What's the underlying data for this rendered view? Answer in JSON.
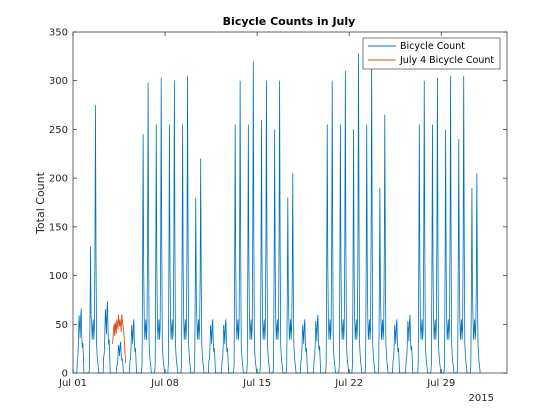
{
  "chart_data": {
    "type": "line",
    "title": "Bicycle Counts in July",
    "xlabel": "",
    "ylabel": "Total Count",
    "x_range": [
      "2015-07-01",
      "2015-08-03"
    ],
    "ylim": [
      0,
      350
    ],
    "yticks": [
      0,
      50,
      100,
      150,
      200,
      250,
      300,
      350
    ],
    "xticks": [
      {
        "date": "2015-07-01",
        "label": "Jul 01"
      },
      {
        "date": "2015-07-08",
        "label": "Jul 08"
      },
      {
        "date": "2015-07-15",
        "label": "Jul 15"
      },
      {
        "date": "2015-07-22",
        "label": "Jul 22"
      },
      {
        "date": "2015-07-29",
        "label": "Jul 29"
      }
    ],
    "x_secondary_label": "2015",
    "grid": false,
    "legend_position": "top-right",
    "series": [
      {
        "name": "Bicycle Count",
        "color": "#0072bd",
        "daily_peaks": [
          {
            "date": "2015-07-01",
            "am": 72,
            "pm": 50
          },
          {
            "date": "2015-07-02",
            "am": 130,
            "pm": 275
          },
          {
            "date": "2015-07-03",
            "am": 80,
            "pm": 60
          },
          {
            "date": "2015-07-04",
            "am": 30,
            "pm": 35
          },
          {
            "date": "2015-07-05",
            "am": 25,
            "pm": 60
          },
          {
            "date": "2015-07-06",
            "am": 245,
            "pm": 298
          },
          {
            "date": "2015-07-07",
            "am": 255,
            "pm": 303
          },
          {
            "date": "2015-07-08",
            "am": 255,
            "pm": 300
          },
          {
            "date": "2015-07-09",
            "am": 255,
            "pm": 305
          },
          {
            "date": "2015-07-10",
            "am": 180,
            "pm": 220
          },
          {
            "date": "2015-07-11",
            "am": 55,
            "pm": 60
          },
          {
            "date": "2015-07-12",
            "am": 40,
            "pm": 60
          },
          {
            "date": "2015-07-13",
            "am": 255,
            "pm": 300
          },
          {
            "date": "2015-07-14",
            "am": 255,
            "pm": 320
          },
          {
            "date": "2015-07-15",
            "am": 260,
            "pm": 300
          },
          {
            "date": "2015-07-16",
            "am": 250,
            "pm": 300
          },
          {
            "date": "2015-07-17",
            "am": 180,
            "pm": 205
          },
          {
            "date": "2015-07-18",
            "am": 60,
            "pm": 45
          },
          {
            "date": "2015-07-19",
            "am": 40,
            "pm": 65
          },
          {
            "date": "2015-07-20",
            "am": 255,
            "pm": 300
          },
          {
            "date": "2015-07-21",
            "am": 255,
            "pm": 310
          },
          {
            "date": "2015-07-22",
            "am": 250,
            "pm": 328
          },
          {
            "date": "2015-07-23",
            "am": 255,
            "pm": 325
          },
          {
            "date": "2015-07-24",
            "am": 190,
            "pm": 265
          },
          {
            "date": "2015-07-25",
            "am": 55,
            "pm": 60
          },
          {
            "date": "2015-07-26",
            "am": 45,
            "pm": 65
          },
          {
            "date": "2015-07-27",
            "am": 255,
            "pm": 300
          },
          {
            "date": "2015-07-28",
            "am": 255,
            "pm": 303
          },
          {
            "date": "2015-07-29",
            "am": 250,
            "pm": 305
          },
          {
            "date": "2015-07-30",
            "am": 240,
            "pm": 305
          },
          {
            "date": "2015-07-31",
            "am": 190,
            "pm": 205
          }
        ]
      },
      {
        "name": "July 4 Bicycle Count",
        "color": "#d95319",
        "x_range": [
          "2015-07-04",
          "2015-07-05"
        ],
        "values": [
          30,
          35,
          45,
          50,
          38,
          52,
          48,
          40,
          55,
          50,
          45,
          60,
          52,
          48,
          55,
          50,
          42,
          60,
          55,
          50,
          45,
          40,
          30,
          20,
          10
        ]
      }
    ]
  }
}
